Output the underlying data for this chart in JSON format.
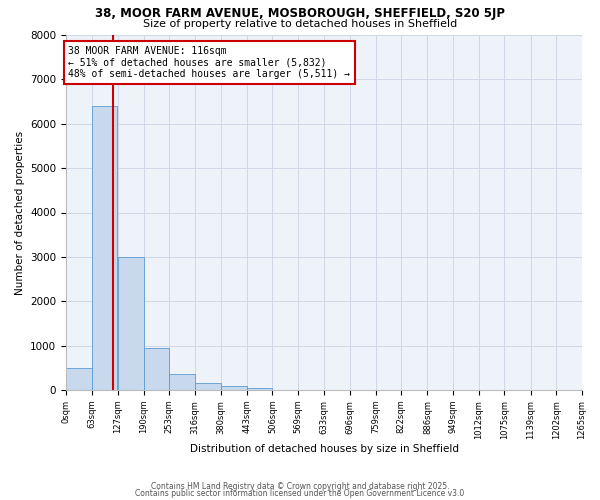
{
  "title_line1": "38, MOOR FARM AVENUE, MOSBOROUGH, SHEFFIELD, S20 5JP",
  "title_line2": "Size of property relative to detached houses in Sheffield",
  "xlabel": "Distribution of detached houses by size in Sheffield",
  "ylabel": "Number of detached properties",
  "bar_values": [
    500,
    6400,
    3000,
    950,
    350,
    150,
    100,
    50,
    10,
    5,
    2,
    1,
    0,
    0,
    0,
    0,
    0,
    0,
    0,
    0
  ],
  "bin_edges": [
    0,
    63,
    127,
    190,
    253,
    316,
    380,
    443,
    506,
    569,
    633,
    696,
    759,
    822,
    886,
    949,
    1012,
    1075,
    1139,
    1202,
    1265
  ],
  "bin_labels": [
    "0sqm",
    "63sqm",
    "127sqm",
    "190sqm",
    "253sqm",
    "316sqm",
    "380sqm",
    "443sqm",
    "506sqm",
    "569sqm",
    "633sqm",
    "696sqm",
    "759sqm",
    "822sqm",
    "886sqm",
    "949sqm",
    "1012sqm",
    "1075sqm",
    "1139sqm",
    "1202sqm",
    "1265sqm"
  ],
  "red_line_x": 116,
  "ylim": [
    0,
    8000
  ],
  "bar_color": "#c8d9ed",
  "bar_edge_color": "#5b9bd5",
  "red_line_color": "#cc0000",
  "grid_color": "#d0d8e8",
  "bg_color": "#eef2f9",
  "annotation_text": "38 MOOR FARM AVENUE: 116sqm\n← 51% of detached houses are smaller (5,832)\n48% of semi-detached houses are larger (5,511) →",
  "annotation_box_color": "#cc0000",
  "footer1": "Contains HM Land Registry data © Crown copyright and database right 2025.",
  "footer2": "Contains public sector information licensed under the Open Government Licence v3.0"
}
